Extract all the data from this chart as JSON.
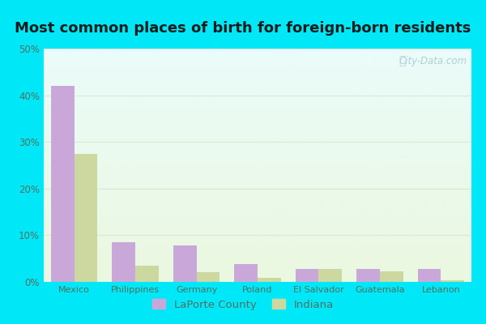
{
  "title": "Most common places of birth for foreign-born residents",
  "categories": [
    "Mexico",
    "Philippines",
    "Germany",
    "Poland",
    "El Salvador",
    "Guatemala",
    "Lebanon"
  ],
  "laporte_values": [
    42,
    8.5,
    7.8,
    3.8,
    2.8,
    2.8,
    2.8
  ],
  "indiana_values": [
    27.5,
    3.5,
    2.0,
    0.8,
    2.8,
    2.2,
    0.3
  ],
  "laporte_color": "#c9a8d9",
  "indiana_color": "#ccd8a0",
  "ylim": [
    0,
    50
  ],
  "yticks": [
    0,
    10,
    20,
    30,
    40,
    50
  ],
  "ytick_labels": [
    "0%",
    "10%",
    "20%",
    "30%",
    "40%",
    "50%"
  ],
  "outer_bg": "#00e8f8",
  "title_fontsize": 13,
  "watermark": "City-Data.com",
  "legend_laporte": "LaPorte County",
  "legend_indiana": "Indiana",
  "bar_width": 0.38,
  "grid_color": "#d8e8d0",
  "tick_color": "#608070",
  "label_color": "#507060"
}
